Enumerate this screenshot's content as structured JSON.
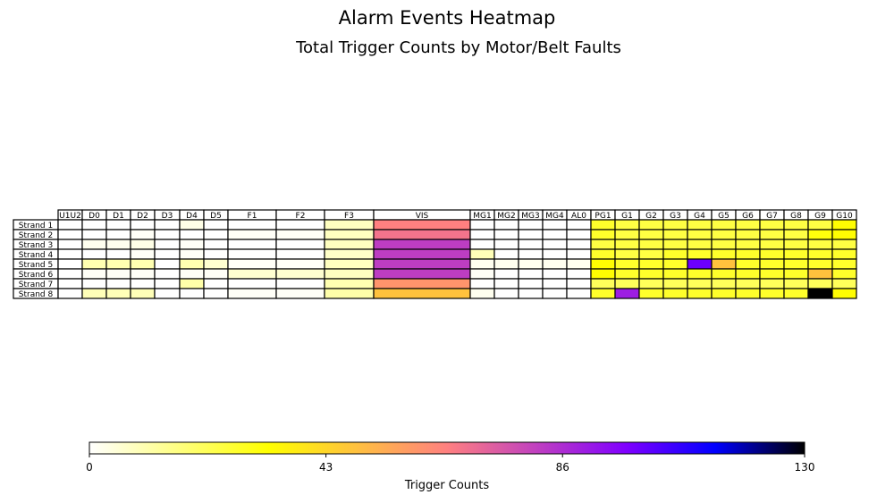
{
  "chart_data": {
    "type": "heatmap",
    "title": "Alarm Events Heatmap",
    "subtitle": "Total Trigger Counts by Motor/Belt Faults",
    "columns": [
      "U1U2",
      "D0",
      "D1",
      "D2",
      "D3",
      "D4",
      "D5",
      "F1",
      "F2",
      "F3",
      "VIS",
      "MG1",
      "MG2",
      "MG3",
      "MG4",
      "AL0",
      "PG1",
      "G1",
      "G2",
      "G3",
      "G4",
      "G5",
      "G6",
      "G7",
      "G8",
      "G9",
      "G10"
    ],
    "rows": [
      "Strand 1",
      "Strand 2",
      "Strand 3",
      "Strand 4",
      "Strand 5",
      "Strand 6",
      "Strand 7",
      "Strand 8"
    ],
    "values": [
      [
        0,
        0,
        0,
        0,
        0,
        3,
        0,
        0,
        0,
        8,
        65,
        0,
        0,
        0,
        0,
        0,
        27,
        24,
        24,
        24,
        24,
        24,
        24,
        24,
        24,
        24,
        33
      ],
      [
        0,
        0,
        0,
        1,
        0,
        0,
        0,
        1,
        1,
        8,
        68,
        0,
        0,
        0,
        0,
        0,
        27,
        24,
        24,
        24,
        24,
        24,
        24,
        24,
        24,
        31,
        33
      ],
      [
        0,
        2,
        2,
        3,
        0,
        1,
        0,
        0,
        0,
        8,
        82,
        0,
        0,
        0,
        0,
        0,
        24,
        24,
        24,
        24,
        24,
        24,
        24,
        24,
        24,
        24,
        24
      ],
      [
        0,
        0,
        0,
        1,
        0,
        1,
        0,
        0,
        0,
        7,
        82,
        9,
        0,
        0,
        0,
        0,
        27,
        24,
        24,
        27,
        27,
        27,
        27,
        27,
        27,
        27,
        27
      ],
      [
        0,
        10,
        10,
        10,
        0,
        10,
        6,
        1,
        1,
        8,
        82,
        2,
        2,
        2,
        2,
        2,
        33,
        27,
        27,
        27,
        100,
        48,
        27,
        27,
        27,
        27,
        27
      ],
      [
        0,
        1,
        1,
        1,
        0,
        1,
        1,
        6,
        6,
        8,
        82,
        1,
        0,
        0,
        0,
        0,
        33,
        27,
        27,
        27,
        27,
        27,
        27,
        27,
        27,
        48,
        27
      ],
      [
        0,
        0,
        0,
        0,
        0,
        11,
        0,
        0,
        0,
        10,
        60,
        0,
        0,
        0,
        0,
        0,
        21,
        21,
        21,
        21,
        21,
        21,
        21,
        21,
        21,
        21,
        21
      ],
      [
        0,
        9,
        9,
        9,
        0,
        0,
        0,
        1,
        1,
        11,
        48,
        2,
        0,
        0,
        0,
        0,
        27,
        90,
        27,
        27,
        27,
        27,
        27,
        27,
        27,
        130,
        33
      ]
    ],
    "colormap": "gnuplot2_r",
    "zlim": [
      0,
      130
    ],
    "colorbar": {
      "label": "Trigger Counts",
      "ticks": [
        0,
        43,
        86,
        130
      ],
      "orientation": "horizontal",
      "placement": "bottom"
    },
    "colors": {
      "colormap_stops": [
        "#ffffff",
        "#ffff00",
        "#ff8080",
        "#8000ff",
        "#0000ff",
        "#000000"
      ]
    }
  }
}
